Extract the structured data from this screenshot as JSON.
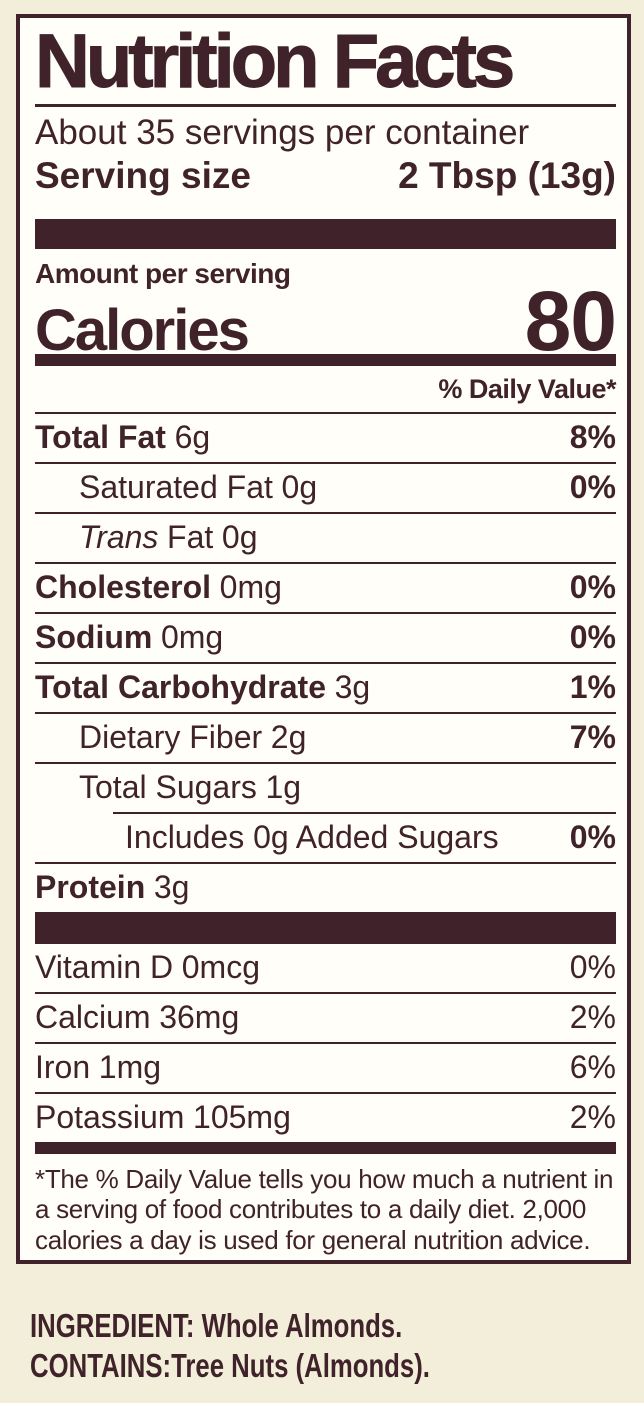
{
  "colors": {
    "brown": "#40232A",
    "cream": "#F2EEDA",
    "paper": "#FFFEF8"
  },
  "nutrition": {
    "title": "Nutrition Facts",
    "servings": "About 35 servings per container",
    "serving_size": {
      "label": "Serving size",
      "value": "2 Tbsp (13g)"
    },
    "amount_per_serving": "Amount per serving",
    "calories": {
      "label": "Calories",
      "value": "80"
    },
    "dv_header": "% Daily Value*",
    "rows": [
      {
        "name": "Total Fat",
        "amount": "6g",
        "dv": "8%"
      },
      {
        "name": "Saturated Fat",
        "amount": "0g",
        "dv": "0%"
      },
      {
        "name_italic": "Trans",
        "name_rest": "Fat",
        "amount": "0g",
        "dv": ""
      },
      {
        "name": "Cholesterol",
        "amount": "0mg",
        "dv": "0%"
      },
      {
        "name": "Sodium",
        "amount": "0mg",
        "dv": "0%"
      },
      {
        "name": "Total Carbohydrate",
        "amount": "3g",
        "dv": "1%"
      },
      {
        "name": "Dietary Fiber",
        "amount": "2g",
        "dv": "7%"
      },
      {
        "name": "Total Sugars",
        "amount": "1g",
        "dv": ""
      },
      {
        "name": "Includes 0g Added Sugars",
        "amount": "",
        "dv": "0%"
      },
      {
        "name": "Protein",
        "amount": "3g",
        "dv": ""
      }
    ],
    "vitamins": [
      {
        "name": "Vitamin D",
        "amount": "0mcg",
        "dv": "0%"
      },
      {
        "name": "Calcium",
        "amount": "36mg",
        "dv": "2%"
      },
      {
        "name": "Iron",
        "amount": "1mg",
        "dv": "6%"
      },
      {
        "name": "Potassium",
        "amount": "105mg",
        "dv": "2%"
      }
    ],
    "footnote_lines": [
      "*The % Daily Value tells you how much a nutrient in",
      "a serving of food contributes to a daily diet. 2,000",
      "calories a day is used for general nutrition advice."
    ],
    "ingredient_line": "INGREDIENT: Whole Almonds.",
    "contains_line": "CONTAINS:Tree Nuts (Almonds)."
  }
}
